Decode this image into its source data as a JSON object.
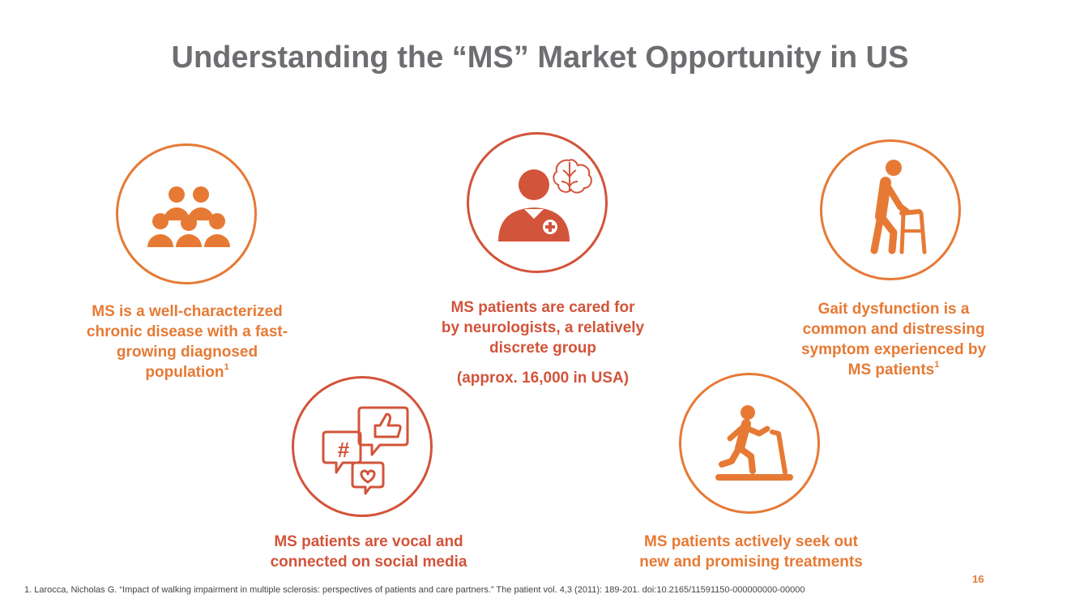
{
  "slide": {
    "title": "Understanding the “MS” Market Opportunity in US",
    "page_number": "16",
    "footnote": "1. Larocca, Nicholas G. “Impact of walking impairment in multiple sclerosis: perspectives of patients and care partners.” The patient vol. 4,3 (2011): 189-201. doi:10.2165/11591150-000000000-00000"
  },
  "colors": {
    "orange": "#e67a35",
    "red": "#d2543a",
    "title_gray": "#6d6e71"
  },
  "items": {
    "population": {
      "icon": "group-people-icon",
      "lines": [
        "MS is a well-characterized",
        "chronic disease with a fast-",
        "growing diagnosed",
        "population"
      ],
      "sup": "1"
    },
    "neurologists": {
      "icon": "doctor-brain-icon",
      "lines": [
        "MS patients are cared for",
        "by neurologists, a relatively",
        "discrete group"
      ],
      "note": "(approx. 16,000 in USA)"
    },
    "gait": {
      "icon": "person-walker-icon",
      "lines": [
        "Gait dysfunction is a",
        "common and distressing",
        "symptom experienced by",
        "MS patients"
      ],
      "sup": "1"
    },
    "social": {
      "icon": "social-media-icon",
      "lines": [
        "MS patients are vocal and",
        "connected on social media"
      ]
    },
    "treatments": {
      "icon": "treadmill-runner-icon",
      "lines": [
        "MS patients actively seek out",
        "new and promising treatments"
      ]
    }
  }
}
